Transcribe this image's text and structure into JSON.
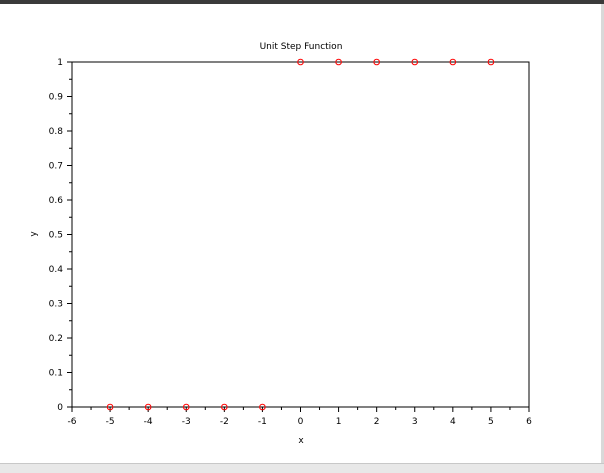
{
  "chart_data": {
    "type": "scatter",
    "title": "Unit Step Function",
    "xlabel": "x",
    "ylabel": "y",
    "xlim": [
      -6,
      6
    ],
    "ylim": [
      0,
      1
    ],
    "x_ticks": [
      -6,
      -5,
      -4,
      -3,
      -2,
      -1,
      0,
      1,
      2,
      3,
      4,
      5,
      6
    ],
    "y_ticks": [
      0,
      0.1,
      0.2,
      0.3,
      0.4,
      0.5,
      0.6,
      0.7,
      0.8,
      0.9,
      1
    ],
    "x_tick_labels": [
      "-6",
      "-5",
      "-4",
      "-3",
      "-2",
      "-1",
      "0",
      "1",
      "2",
      "3",
      "4",
      "5",
      "6"
    ],
    "y_tick_labels": [
      "0",
      "0.1",
      "0.2",
      "0.3",
      "0.4",
      "0.5",
      "0.6",
      "0.7",
      "0.8",
      "0.9",
      "1"
    ],
    "grid": false,
    "marker": "circle-open",
    "series": [
      {
        "color": "#ff0000",
        "points": [
          {
            "x": -5,
            "y": 0
          },
          {
            "x": -4,
            "y": 0
          },
          {
            "x": -3,
            "y": 0
          },
          {
            "x": -2,
            "y": 0
          },
          {
            "x": -1,
            "y": 0
          },
          {
            "x": 0,
            "y": 1
          },
          {
            "x": 1,
            "y": 1
          },
          {
            "x": 2,
            "y": 1
          },
          {
            "x": 3,
            "y": 1
          },
          {
            "x": 4,
            "y": 1
          },
          {
            "x": 5,
            "y": 1
          }
        ]
      }
    ]
  }
}
